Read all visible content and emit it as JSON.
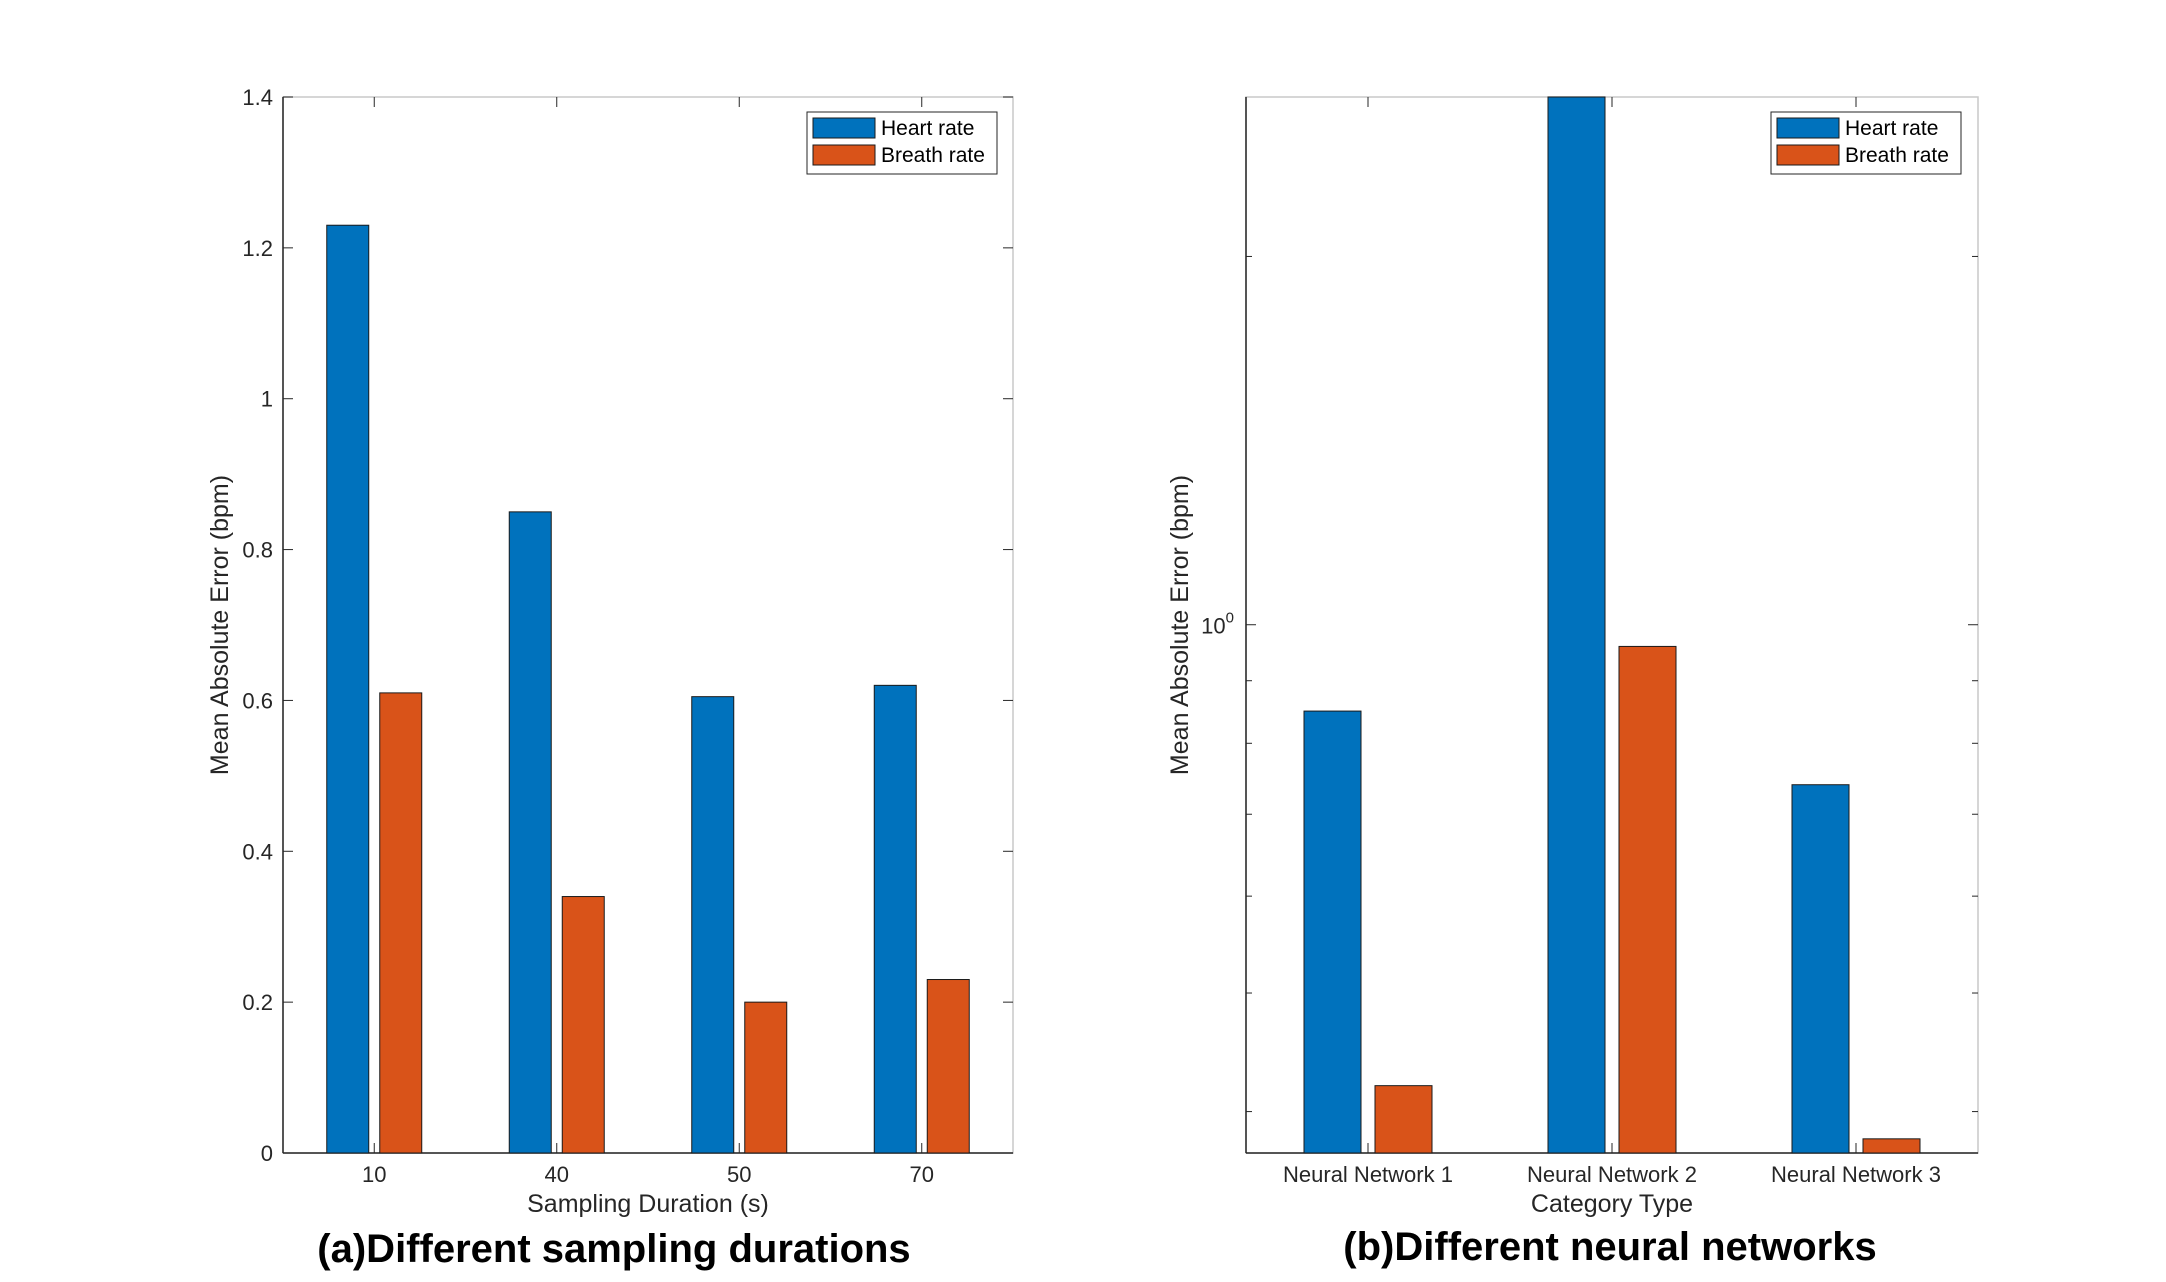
{
  "colors": {
    "heart": "#0072BD",
    "breath": "#D95319",
    "axis": "#262626"
  },
  "chart_data": [
    {
      "type": "bar",
      "caption": "(a)Different sampling durations",
      "xlabel": "Sampling Duration (s)",
      "ylabel": "Mean Absolute Error (bpm)",
      "categories": [
        "10",
        "40",
        "50",
        "70"
      ],
      "yscale": "linear",
      "ylim": [
        0,
        1.4
      ],
      "yticks": [
        0,
        0.2,
        0.4,
        0.6,
        0.8,
        1,
        1.2,
        1.4
      ],
      "ytick_labels": [
        "0",
        "0.2",
        "0.4",
        "0.6",
        "0.8",
        "1",
        "1.2",
        "1.4"
      ],
      "legend_position": "top-right",
      "series": [
        {
          "name": "Heart rate",
          "values": [
            1.23,
            0.85,
            0.605,
            0.62
          ]
        },
        {
          "name": "Breath rate",
          "values": [
            0.61,
            0.34,
            0.2,
            0.23
          ]
        }
      ]
    },
    {
      "type": "bar",
      "caption": "(b)Different neural networks",
      "xlabel": "Category Type",
      "ylabel": "Mean Absolute Error (bpm)",
      "categories": [
        "Neural Network 1",
        "Neural Network 2",
        "Neural Network 3"
      ],
      "yscale": "log",
      "ylim": [
        0.37,
        2.7
      ],
      "ytick_label": {
        "base": "10",
        "exponent": "0"
      },
      "legend_position": "top-right",
      "series": [
        {
          "name": "Heart rate",
          "values": [
            0.85,
            2.7,
            0.74
          ]
        },
        {
          "name": "Breath rate",
          "values": [
            0.42,
            0.96,
            0.38
          ]
        }
      ]
    }
  ]
}
